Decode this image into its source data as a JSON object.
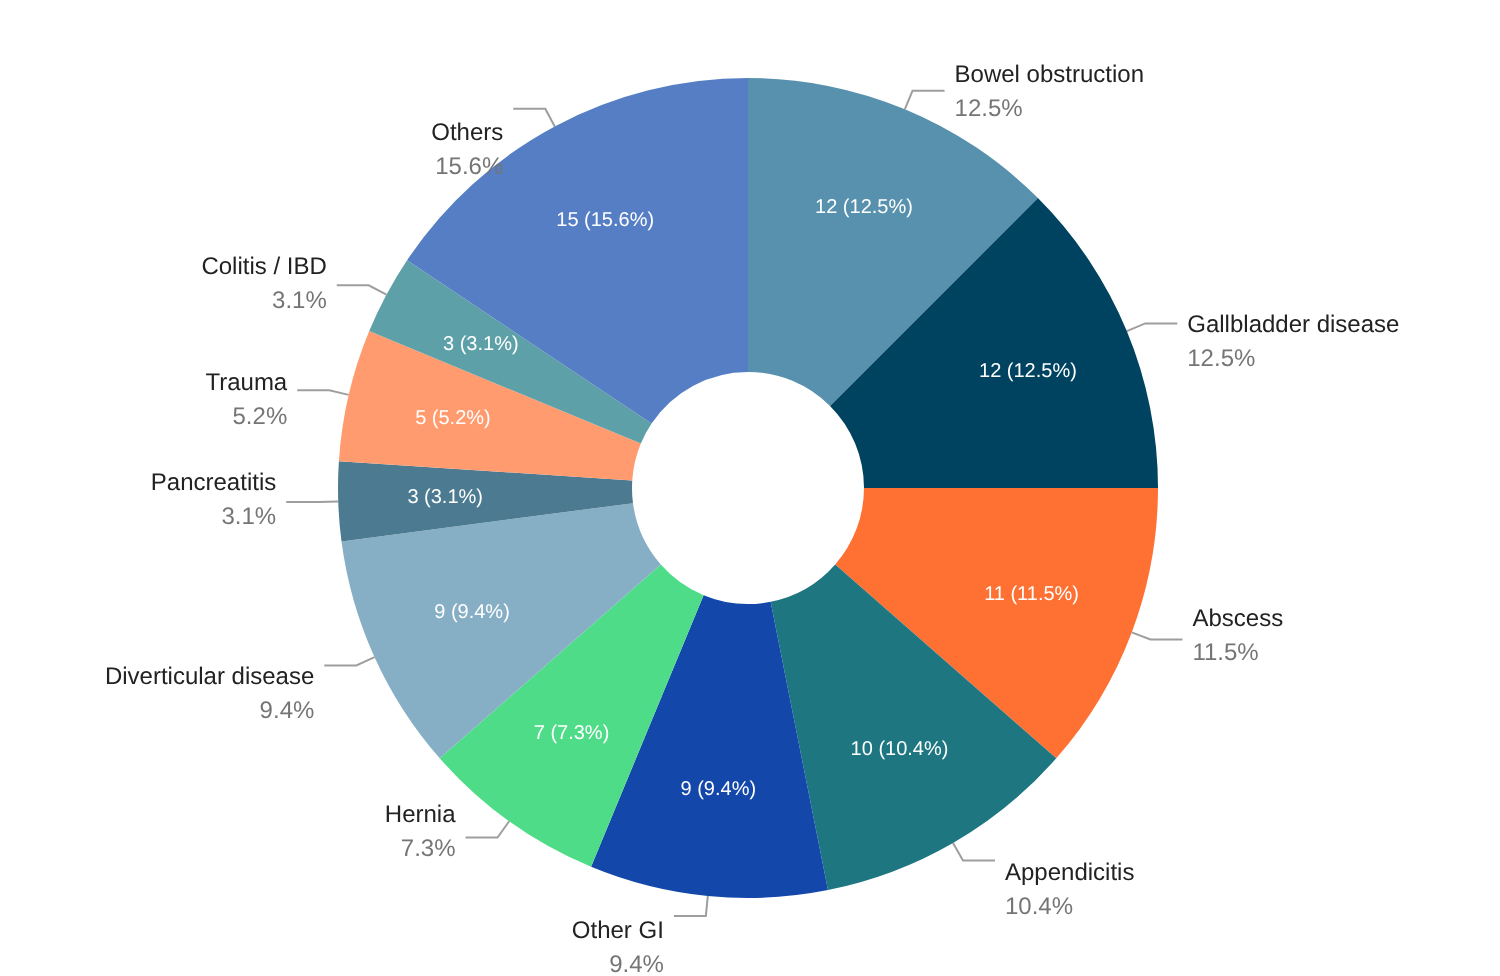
{
  "chart_data": {
    "type": "donut",
    "categories": [
      "Bowel obstruction",
      "Gallbladder disease",
      "Abscess",
      "Appendicitis",
      "Other GI",
      "Hernia",
      "Diverticular disease",
      "Pancreatitis",
      "Trauma",
      "Colitis / IBD",
      "Others"
    ],
    "values": [
      12,
      12,
      11,
      10,
      9,
      7,
      9,
      3,
      5,
      3,
      15
    ],
    "colors": [
      "#5891ad",
      "#004360",
      "#ff7033",
      "#1d7680",
      "#1347a9",
      "#4fdc89",
      "#86afc5",
      "#4c7a90",
      "#ff9b6e",
      "#5ea0a7",
      "#557ec5"
    ],
    "value_labels": [
      "12 (12.5%)",
      "12 (12.5%)",
      "11 (11.5%)",
      "10 (10.4%)",
      "9 (9.4%)",
      "7 (7.3%)",
      "9 (9.4%)",
      "3 (3.1%)",
      "5 (5.2%)",
      "3 (3.1%)",
      "15 (15.6%)"
    ],
    "annotations": [
      "12.5%",
      "12.5%",
      "11.5%",
      "10.4%",
      "9.4%",
      "7.3%",
      "9.4%",
      "3.1%",
      "5.2%",
      "3.1%",
      "15.6%"
    ],
    "legend": false
  }
}
